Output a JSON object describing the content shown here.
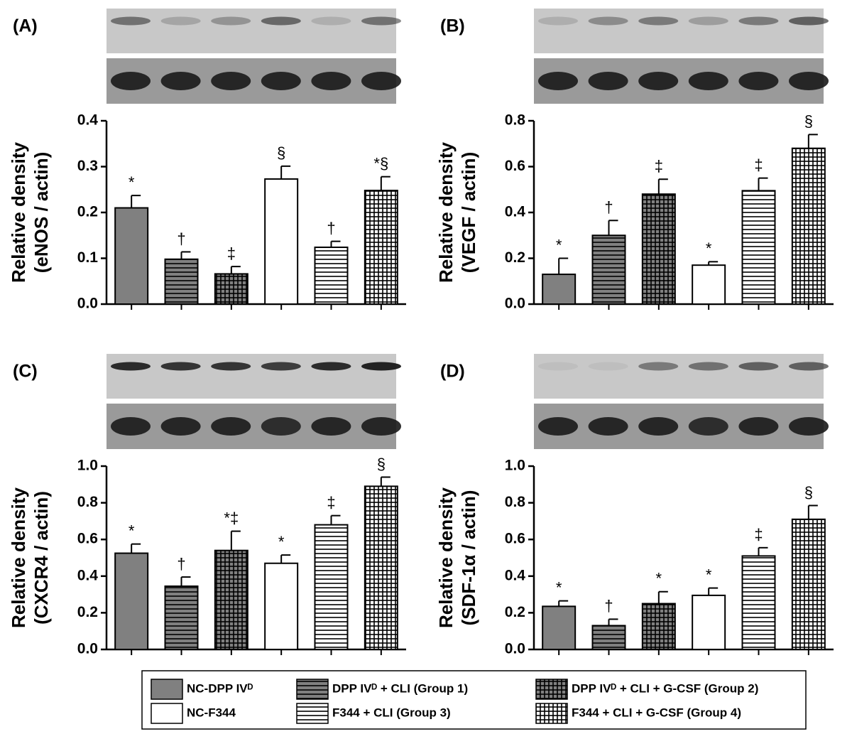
{
  "legend": [
    {
      "name": "NC-DPP IVᴰ",
      "color": "#808080",
      "pattern": "solid"
    },
    {
      "name": "DPP IVᴰ + CLI (Group 1)",
      "color": "#808080",
      "pattern": "hstripe"
    },
    {
      "name": "DPP IVᴰ + CLI + G-CSF (Group 2)",
      "color": "#808080",
      "pattern": "grid"
    },
    {
      "name": "NC-F344",
      "color": "#ffffff",
      "pattern": "solid"
    },
    {
      "name": "F344 + CLI (Group 3)",
      "color": "#ffffff",
      "pattern": "hstripe"
    },
    {
      "name": "F344 + CLI + G-CSF (Group 4)",
      "color": "#ffffff",
      "pattern": "grid"
    }
  ],
  "chart_data": [
    {
      "type": "bar",
      "panel": "(A)",
      "ylabel": [
        "Relative density",
        "(eNOS / actin)"
      ],
      "values": [
        0.21,
        0.098,
        0.066,
        0.273,
        0.124,
        0.248
      ],
      "errors": [
        0.027,
        0.016,
        0.016,
        0.028,
        0.013,
        0.03
      ],
      "annotations": [
        "*",
        "†",
        "‡",
        "§",
        "†",
        "*§"
      ],
      "ylim": [
        0,
        0.4
      ],
      "yticks": [
        {
          "value": 0,
          "label": "0.0"
        },
        0.1,
        0.2,
        0.3,
        0.4
      ]
    },
    {
      "type": "bar",
      "panel": "(B)",
      "ylabel": [
        "Relative density",
        "(VEGF / actin)"
      ],
      "values": [
        0.13,
        0.3,
        0.48,
        0.17,
        0.495,
        0.68
      ],
      "errors": [
        0.07,
        0.065,
        0.065,
        0.015,
        0.055,
        0.06
      ],
      "annotations": [
        "*",
        "†",
        "‡",
        "*",
        "‡",
        "§"
      ],
      "ylim": [
        0,
        0.8
      ],
      "yticks": [
        {
          "value": 0,
          "label": "0.0"
        },
        0.2,
        0.4,
        0.6,
        0.8
      ]
    },
    {
      "type": "bar",
      "panel": "(C)",
      "ylabel": [
        "Relative density",
        "(CXCR4 / actin)"
      ],
      "values": [
        0.525,
        0.345,
        0.54,
        0.47,
        0.68,
        0.89
      ],
      "errors": [
        0.05,
        0.05,
        0.105,
        0.045,
        0.05,
        0.05
      ],
      "annotations": [
        "*",
        "†",
        "*‡",
        "*",
        "‡",
        "§"
      ],
      "ylim": [
        0,
        1
      ],
      "yticks": [
        {
          "value": 0,
          "label": "0.0"
        },
        0.2,
        0.4,
        0.6,
        0.8,
        {
          "value": 1,
          "label": "1.0"
        }
      ]
    },
    {
      "type": "bar",
      "panel": "(D)",
      "ylabel": [
        "Relative density",
        "(SDF-1α / actin)"
      ],
      "values": [
        0.235,
        0.13,
        0.25,
        0.295,
        0.51,
        0.71
      ],
      "errors": [
        0.03,
        0.035,
        0.065,
        0.04,
        0.045,
        0.075
      ],
      "annotations": [
        "*",
        "†",
        "*",
        "*",
        "‡",
        "§"
      ],
      "ylim": [
        0,
        1
      ],
      "yticks": [
        {
          "value": 0,
          "label": "0.0"
        },
        0.2,
        0.4,
        0.6,
        0.8,
        {
          "value": 1,
          "label": "1.0"
        }
      ]
    }
  ]
}
